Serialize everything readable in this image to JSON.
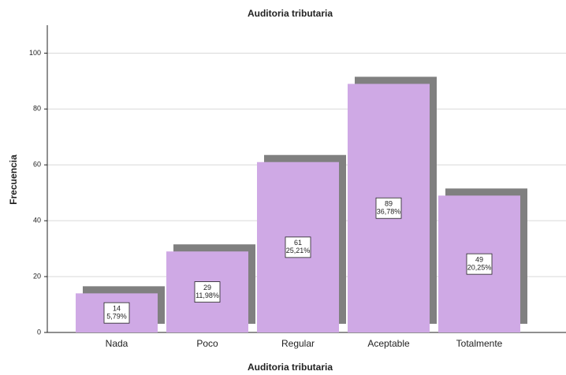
{
  "chart_data": {
    "type": "bar",
    "title": "Auditoria tributaria",
    "x_label": "Auditoria tributaria",
    "y_label": "Frecuencia",
    "categories": [
      "Nada",
      "Poco",
      "Regular",
      "Aceptable",
      "Totalmente"
    ],
    "values": [
      14,
      29,
      61,
      89,
      49
    ],
    "percent_labels": [
      "5,79%",
      "11,98%",
      "25,21%",
      "36,78%",
      "20,25%"
    ],
    "color": "#cfa9e5",
    "shadow_color": "#808080",
    "ylim": [
      0,
      110
    ],
    "yticks": [
      0,
      20,
      40,
      60,
      80,
      100
    ],
    "grid": true
  }
}
